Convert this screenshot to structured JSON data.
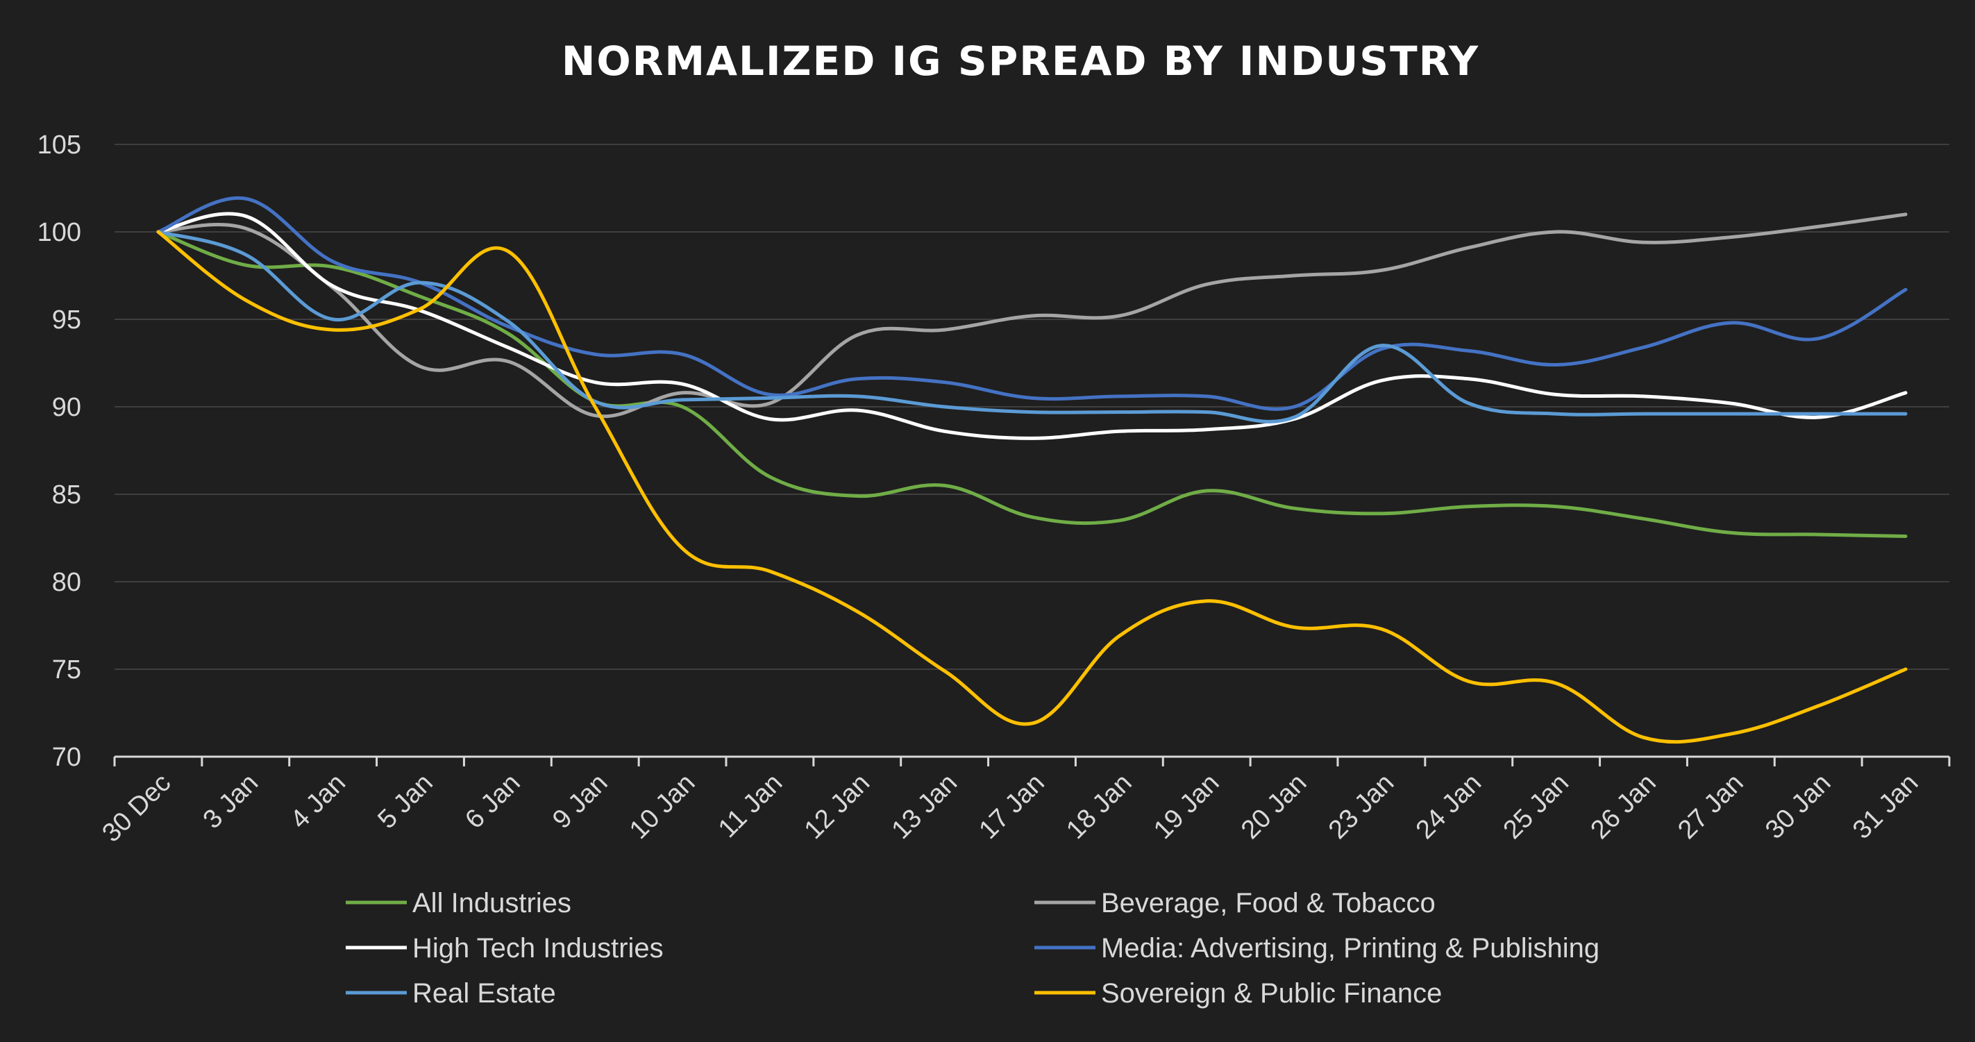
{
  "chart_data": {
    "type": "line",
    "title": "NORMALIZED IG SPREAD BY INDUSTRY",
    "xlabel": "",
    "ylabel": "",
    "ylim": [
      70,
      105
    ],
    "yticks": [
      70,
      75,
      80,
      85,
      90,
      95,
      100,
      105
    ],
    "categories": [
      "30 Dec",
      "3 Jan",
      "4 Jan",
      "5 Jan",
      "6 Jan",
      "9 Jan",
      "10 Jan",
      "11 Jan",
      "12 Jan",
      "13 Jan",
      "17 Jan",
      "18 Jan",
      "19 Jan",
      "20 Jan",
      "23 Jan",
      "24 Jan",
      "25 Jan",
      "26 Jan",
      "27 Jan",
      "30 Jan",
      "31 Jan"
    ],
    "legend_position": "bottom",
    "grid": true,
    "series": [
      {
        "name": "All Industries",
        "color": "#70ad47",
        "values": [
          100,
          98.1,
          98.0,
          96.3,
          94.2,
          90.3,
          90.0,
          86.0,
          84.9,
          85.5,
          83.7,
          83.5,
          85.2,
          84.2,
          83.9,
          84.3,
          84.3,
          83.6,
          82.8,
          82.7,
          82.6
        ]
      },
      {
        "name": "Beverage, Food & Tobacco",
        "color": "#a5a5a5",
        "values": [
          100,
          100.2,
          96.8,
          92.3,
          92.6,
          89.5,
          90.8,
          90.2,
          94.1,
          94.4,
          95.2,
          95.2,
          97.0,
          97.5,
          97.8,
          99.1,
          100.0,
          99.4,
          99.7,
          100.3,
          101.0
        ]
      },
      {
        "name": "High Tech Industries",
        "color": "#ffffff",
        "values": [
          100,
          100.9,
          96.9,
          95.5,
          93.4,
          91.4,
          91.3,
          89.3,
          89.8,
          88.6,
          88.2,
          88.6,
          88.7,
          89.3,
          91.5,
          91.6,
          90.7,
          90.6,
          90.2,
          89.4,
          90.8
        ]
      },
      {
        "name": "Media: Advertising, Printing & Publishing",
        "color": "#4472c4",
        "values": [
          100,
          101.9,
          98.3,
          97.1,
          94.6,
          93.0,
          93.0,
          90.7,
          91.6,
          91.4,
          90.5,
          90.6,
          90.6,
          90.0,
          93.3,
          93.2,
          92.4,
          93.4,
          94.8,
          93.9,
          96.7
        ]
      },
      {
        "name": "Real Estate",
        "color": "#5b9bd5",
        "values": [
          100,
          98.7,
          95.0,
          97.1,
          94.9,
          90.3,
          90.4,
          90.5,
          90.6,
          90.0,
          89.7,
          89.7,
          89.7,
          89.4,
          93.5,
          90.2,
          89.6,
          89.6,
          89.6,
          89.6,
          89.6
        ]
      },
      {
        "name": "Sovereign & Public Finance",
        "color": "#ffc000",
        "values": [
          100,
          96.1,
          94.4,
          95.6,
          98.9,
          90.0,
          81.9,
          80.6,
          78.3,
          74.9,
          71.9,
          76.9,
          78.9,
          77.4,
          77.3,
          74.3,
          74.2,
          71.1,
          71.3,
          72.9,
          75.0
        ]
      }
    ]
  }
}
